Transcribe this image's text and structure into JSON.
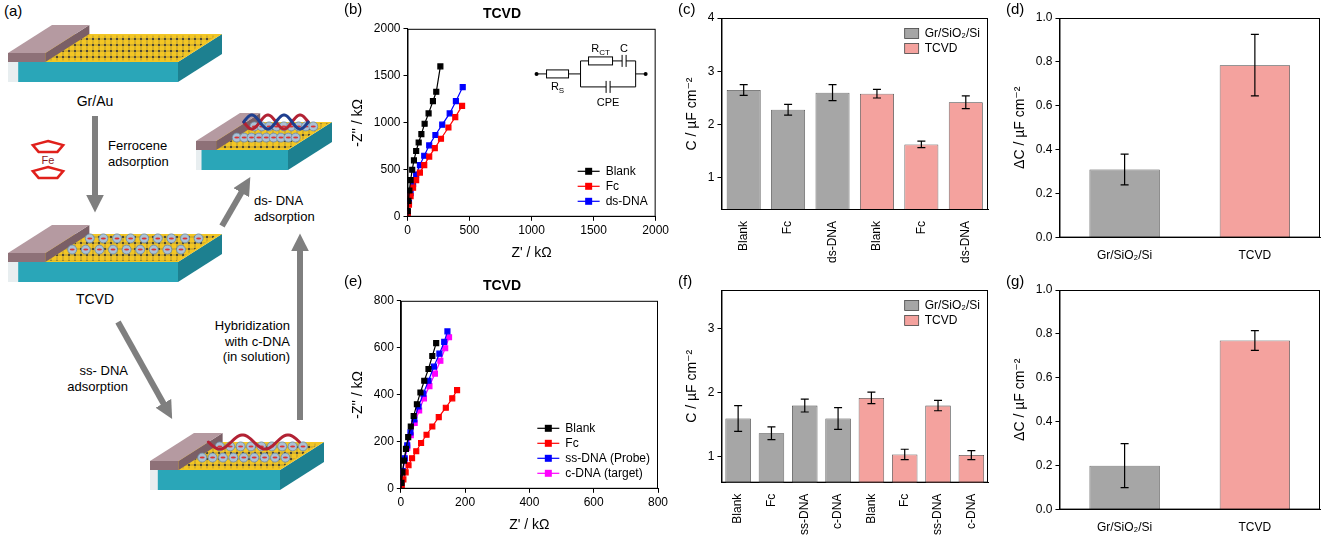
{
  "diagram": {
    "label": "(a)",
    "substrate": "Gr/Au",
    "functionalized": "TCVD",
    "ferrocene_step": "Ferrocene adsorption",
    "ferrocene_atom": "Fe",
    "ds_step": "ds- DNA adsorption",
    "hybridization_step": "Hybridization with c-DNA (in solution)",
    "ss_step": "ss- DNA adsorption"
  },
  "chart_data": [
    {
      "panel": "(b)",
      "type": "line",
      "title": "TCVD",
      "x_label": "Z' / kΩ",
      "y_label": "-Z'' / kΩ",
      "xlim": [
        0,
        2000
      ],
      "xticks": [
        0,
        500,
        1000,
        1500,
        2000
      ],
      "ylim": [
        0,
        2000
      ],
      "yticks": [
        0,
        500,
        1000,
        1500,
        2000
      ],
      "grid": false,
      "legend": "lower right",
      "marker": "square",
      "annotations": [
        {
          "text": "R",
          "sub": "S"
        },
        {
          "text": "R",
          "sub": "CT"
        },
        {
          "text": "C"
        },
        {
          "text": "CPE"
        }
      ],
      "series": [
        {
          "name": "Blank",
          "color": "#000000",
          "x": [
            2,
            8,
            15,
            25,
            38,
            52,
            70,
            90,
            112,
            138,
            170,
            205,
            232,
            265
          ],
          "values": [
            60,
            170,
            280,
            390,
            500,
            600,
            700,
            790,
            880,
            990,
            1100,
            1230,
            1330,
            1600
          ]
        },
        {
          "name": "Fc",
          "color": "#ff0000",
          "x": [
            3,
            12,
            25,
            45,
            70,
            100,
            135,
            175,
            220,
            270,
            330,
            385,
            440
          ],
          "values": [
            40,
            130,
            220,
            310,
            390,
            470,
            550,
            640,
            730,
            830,
            950,
            1060,
            1180
          ]
        },
        {
          "name": "ds-DNA",
          "color": "#0000ff",
          "x": [
            3,
            12,
            25,
            45,
            70,
            100,
            135,
            175,
            225,
            280,
            340,
            390,
            445
          ],
          "values": [
            50,
            150,
            250,
            350,
            450,
            550,
            650,
            760,
            870,
            980,
            1100,
            1230,
            1380
          ]
        }
      ]
    },
    {
      "panel": "(c)",
      "type": "bar",
      "y_label": "C / µF cm⁻²",
      "ylim": [
        0.4,
        4
      ],
      "yticks": [
        1,
        2,
        3,
        4
      ],
      "grid": false,
      "legend": "upper right",
      "categories": [
        "Blank",
        "Fc",
        "ds-DNA",
        "Blank",
        "Fc",
        "ds-DNA"
      ],
      "series": [
        {
          "name": "Gr/SiO₂/Si",
          "color": "#a6a6a6",
          "values": [
            2.65,
            2.28,
            2.6,
            null,
            null,
            null
          ],
          "errors": [
            0.1,
            0.1,
            0.15,
            null,
            null,
            null
          ]
        },
        {
          "name": "TCVD",
          "color": "#f4a29e",
          "values": [
            null,
            null,
            null,
            2.58,
            1.63,
            2.42
          ],
          "errors": [
            null,
            null,
            null,
            0.08,
            0.06,
            0.12
          ]
        }
      ]
    },
    {
      "panel": "(d)",
      "type": "bar",
      "y_label": "ΔC / µF cm⁻²",
      "ylim": [
        0,
        1
      ],
      "yticks": [
        {
          "value": 0,
          "label": "0.0"
        },
        0.2,
        0.4,
        0.6,
        0.8,
        {
          "value": 1,
          "label": "1.0"
        }
      ],
      "grid": false,
      "categories": [
        "Gr/SiO₂/Si",
        "TCVD"
      ],
      "values": [
        0.31,
        0.785
      ],
      "errors": [
        0.07,
        0.14
      ],
      "colors": [
        "#a6a6a6",
        "#f4a29e"
      ]
    },
    {
      "panel": "(e)",
      "type": "line",
      "title": "TCVD",
      "x_label": "Z' / kΩ",
      "y_label": "-Z'' / kΩ",
      "xlim": [
        0,
        800
      ],
      "xticks": [
        0,
        200,
        400,
        600,
        800
      ],
      "ylim": [
        0,
        800
      ],
      "yticks": [
        0,
        200,
        400,
        600,
        800
      ],
      "grid": false,
      "legend": "lower right",
      "marker": "square",
      "series": [
        {
          "name": "Blank",
          "color": "#000000",
          "x": [
            2,
            5,
            10,
            16,
            23,
            31,
            40,
            50,
            61,
            73,
            86,
            98,
            110
          ],
          "values": [
            25,
            70,
            120,
            170,
            220,
            265,
            310,
            360,
            410,
            460,
            510,
            565,
            620
          ]
        },
        {
          "name": "Fc",
          "color": "#ff0000",
          "x": [
            3,
            8,
            15,
            24,
            35,
            48,
            63,
            80,
            98,
            118,
            140,
            160,
            175
          ],
          "values": [
            15,
            40,
            70,
            100,
            130,
            160,
            195,
            230,
            265,
            305,
            345,
            385,
            420
          ]
        },
        {
          "name": "ss-DNA (Probe)",
          "color": "#0000ff",
          "x": [
            2,
            6,
            12,
            20,
            30,
            42,
            55,
            70,
            86,
            103,
            120,
            135,
            145
          ],
          "values": [
            25,
            75,
            130,
            185,
            240,
            295,
            350,
            405,
            460,
            520,
            575,
            625,
            670
          ]
        },
        {
          "name": "c-DNA (target)",
          "color": "#ff00ff",
          "x": [
            2,
            6,
            12,
            20,
            31,
            43,
            57,
            72,
            89,
            106,
            123,
            138,
            150
          ],
          "values": [
            22,
            70,
            122,
            175,
            228,
            280,
            333,
            385,
            437,
            490,
            545,
            598,
            645
          ]
        }
      ]
    },
    {
      "panel": "(f)",
      "type": "bar",
      "y_label": "C / µF cm⁻²",
      "ylim": [
        0.6,
        3.6
      ],
      "yticks": [
        1,
        2,
        3
      ],
      "grid": false,
      "legend": "upper right",
      "categories": [
        "Blank",
        "Fc",
        "ss-DNA",
        "c-DNA",
        "Blank",
        "Fc",
        "ss-DNA",
        "c-DNA"
      ],
      "series": [
        {
          "name": "Gr/SiO₂/Si",
          "color": "#a6a6a6",
          "values": [
            1.6,
            1.37,
            1.8,
            1.6,
            null,
            null,
            null,
            null
          ],
          "errors": [
            0.2,
            0.1,
            0.1,
            0.17,
            null,
            null,
            null,
            null
          ]
        },
        {
          "name": "TCVD",
          "color": "#f4a29e",
          "values": [
            null,
            null,
            null,
            null,
            1.92,
            1.04,
            1.8,
            1.03
          ],
          "errors": [
            null,
            null,
            null,
            null,
            0.09,
            0.08,
            0.08,
            0.07
          ]
        }
      ]
    },
    {
      "panel": "(g)",
      "type": "bar",
      "y_label": "ΔC / µF cm⁻²",
      "ylim": [
        0,
        1
      ],
      "yticks": [
        {
          "value": 0,
          "label": "0.0"
        },
        0.2,
        0.4,
        0.6,
        0.8,
        {
          "value": 1,
          "label": "1.0"
        }
      ],
      "grid": false,
      "categories": [
        "Gr/SiO₂/Si",
        "TCVD"
      ],
      "values": [
        0.2,
        0.77
      ],
      "errors": [
        0.1,
        0.045
      ],
      "colors": [
        "#a6a6a6",
        "#f4a29e"
      ]
    }
  ]
}
